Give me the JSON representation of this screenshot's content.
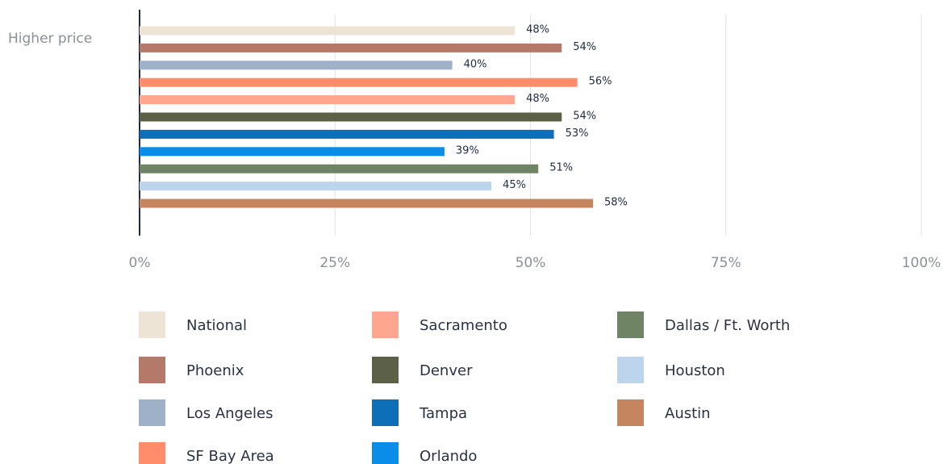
{
  "chart_data": {
    "type": "bar",
    "orientation": "horizontal",
    "categories": [
      "Higher price"
    ],
    "series": [
      {
        "name": "National",
        "color": "#ede4d6",
        "values": [
          48
        ],
        "value_labels": [
          "48%"
        ]
      },
      {
        "name": "Phoenix",
        "color": "#b5796a",
        "values": [
          54
        ],
        "value_labels": [
          "54%"
        ]
      },
      {
        "name": "Los Angeles",
        "color": "#9fb1c9",
        "values": [
          40
        ],
        "value_labels": [
          "40%"
        ]
      },
      {
        "name": "SF Bay Area",
        "color": "#ff8c6b",
        "values": [
          56
        ],
        "value_labels": [
          "56%"
        ]
      },
      {
        "name": "Sacramento",
        "color": "#ffa68e",
        "values": [
          48
        ],
        "value_labels": [
          "48%"
        ]
      },
      {
        "name": "Denver",
        "color": "#5c6047",
        "values": [
          54
        ],
        "value_labels": [
          "54%"
        ]
      },
      {
        "name": "Tampa",
        "color": "#0d6fb8",
        "values": [
          53
        ],
        "value_labels": [
          "53%"
        ]
      },
      {
        "name": "Orlando",
        "color": "#0a8de8",
        "values": [
          39
        ],
        "value_labels": [
          "39%"
        ]
      },
      {
        "name": "Dallas / Ft. Worth",
        "color": "#6e8464",
        "values": [
          51
        ],
        "value_labels": [
          "51%"
        ]
      },
      {
        "name": "Houston",
        "color": "#bcd5ec",
        "values": [
          45
        ],
        "value_labels": [
          "45%"
        ]
      },
      {
        "name": "Austin",
        "color": "#c5855e",
        "values": [
          58
        ],
        "value_labels": [
          "58%"
        ]
      }
    ],
    "xlim": [
      0,
      100
    ],
    "xticks": [
      {
        "value": 0,
        "label": "0%"
      },
      {
        "value": 25,
        "label": "25%"
      },
      {
        "value": 50,
        "label": "50%"
      },
      {
        "value": 75,
        "label": "75%"
      },
      {
        "value": 100,
        "label": "100%"
      }
    ],
    "grid": true
  }
}
